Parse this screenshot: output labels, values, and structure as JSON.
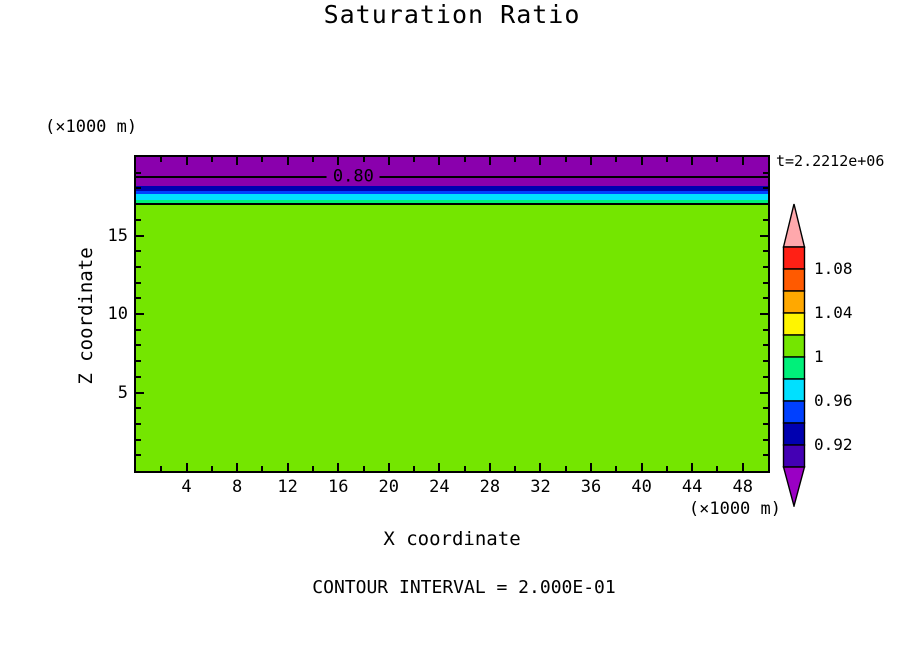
{
  "title": "Saturation Ratio",
  "time_label": "t=2.2212e+06",
  "footer": "CONTOUR INTERVAL = 2.000E-01",
  "axes": {
    "x": {
      "label": "X coordinate",
      "unit": "(×1000 m)",
      "range": [
        0,
        50
      ],
      "major_ticks": [
        4,
        8,
        12,
        16,
        20,
        24,
        28,
        32,
        36,
        40,
        44,
        48
      ],
      "minor_step": 2
    },
    "z": {
      "label": "Z coordinate",
      "unit": "(×1000 m)",
      "range": [
        0,
        20
      ],
      "major_ticks": [
        5,
        10,
        15
      ],
      "minor_step": 1
    }
  },
  "chart_data": {
    "type": "heatmap",
    "title": "Saturation Ratio",
    "xlabel": "X coordinate",
    "ylabel": "Z coordinate",
    "axis_units": "(×1000 m)",
    "x_range": [
      0,
      50
    ],
    "z_range": [
      0,
      20
    ],
    "time_annotation": "t=2.2212e+06",
    "contour_interval": "2.000E-01",
    "bands": [
      {
        "value_range": "< 0.90",
        "z_from": 18.16,
        "z_to": 20.0,
        "color": "#8A00AD"
      },
      {
        "value_range": "0.92–0.94",
        "z_from": 17.85,
        "z_to": 18.16,
        "color": "#0000B0"
      },
      {
        "value_range": "0.94–0.96",
        "z_from": 17.66,
        "z_to": 17.85,
        "color": "#0040FF"
      },
      {
        "value_range": "0.96–0.98",
        "z_from": 17.28,
        "z_to": 17.66,
        "color": "#00E0FF"
      },
      {
        "value_range": "0.98–1.00",
        "z_from": 17.02,
        "z_to": 17.28,
        "color": "#00F07A"
      },
      {
        "value_range": "1.00–1.02",
        "z_from": 0.0,
        "z_to": 17.02,
        "color": "#74E600"
      }
    ],
    "contour_lines": [
      {
        "value": 0.8,
        "z": 18.72,
        "label": "0.80",
        "label_x": 17.2,
        "label_bg": "#8A00AD"
      },
      {
        "value": 1.0,
        "z": 17.02
      }
    ]
  },
  "colorbar": {
    "segments_top_to_bottom": [
      "#FF2015",
      "#FF5A00",
      "#FFA800",
      "#FFF500",
      "#74E600",
      "#00F07A",
      "#00E0FF",
      "#0040FF",
      "#0000B0",
      "#4400B4"
    ],
    "overflow_color": "#FFA8AC",
    "underflow_color": "#9A00C4",
    "labels": [
      {
        "text": "1.08"
      },
      {
        "text": "1.04"
      },
      {
        "text": "1"
      },
      {
        "text": "0.96"
      },
      {
        "text": "0.92"
      }
    ]
  }
}
